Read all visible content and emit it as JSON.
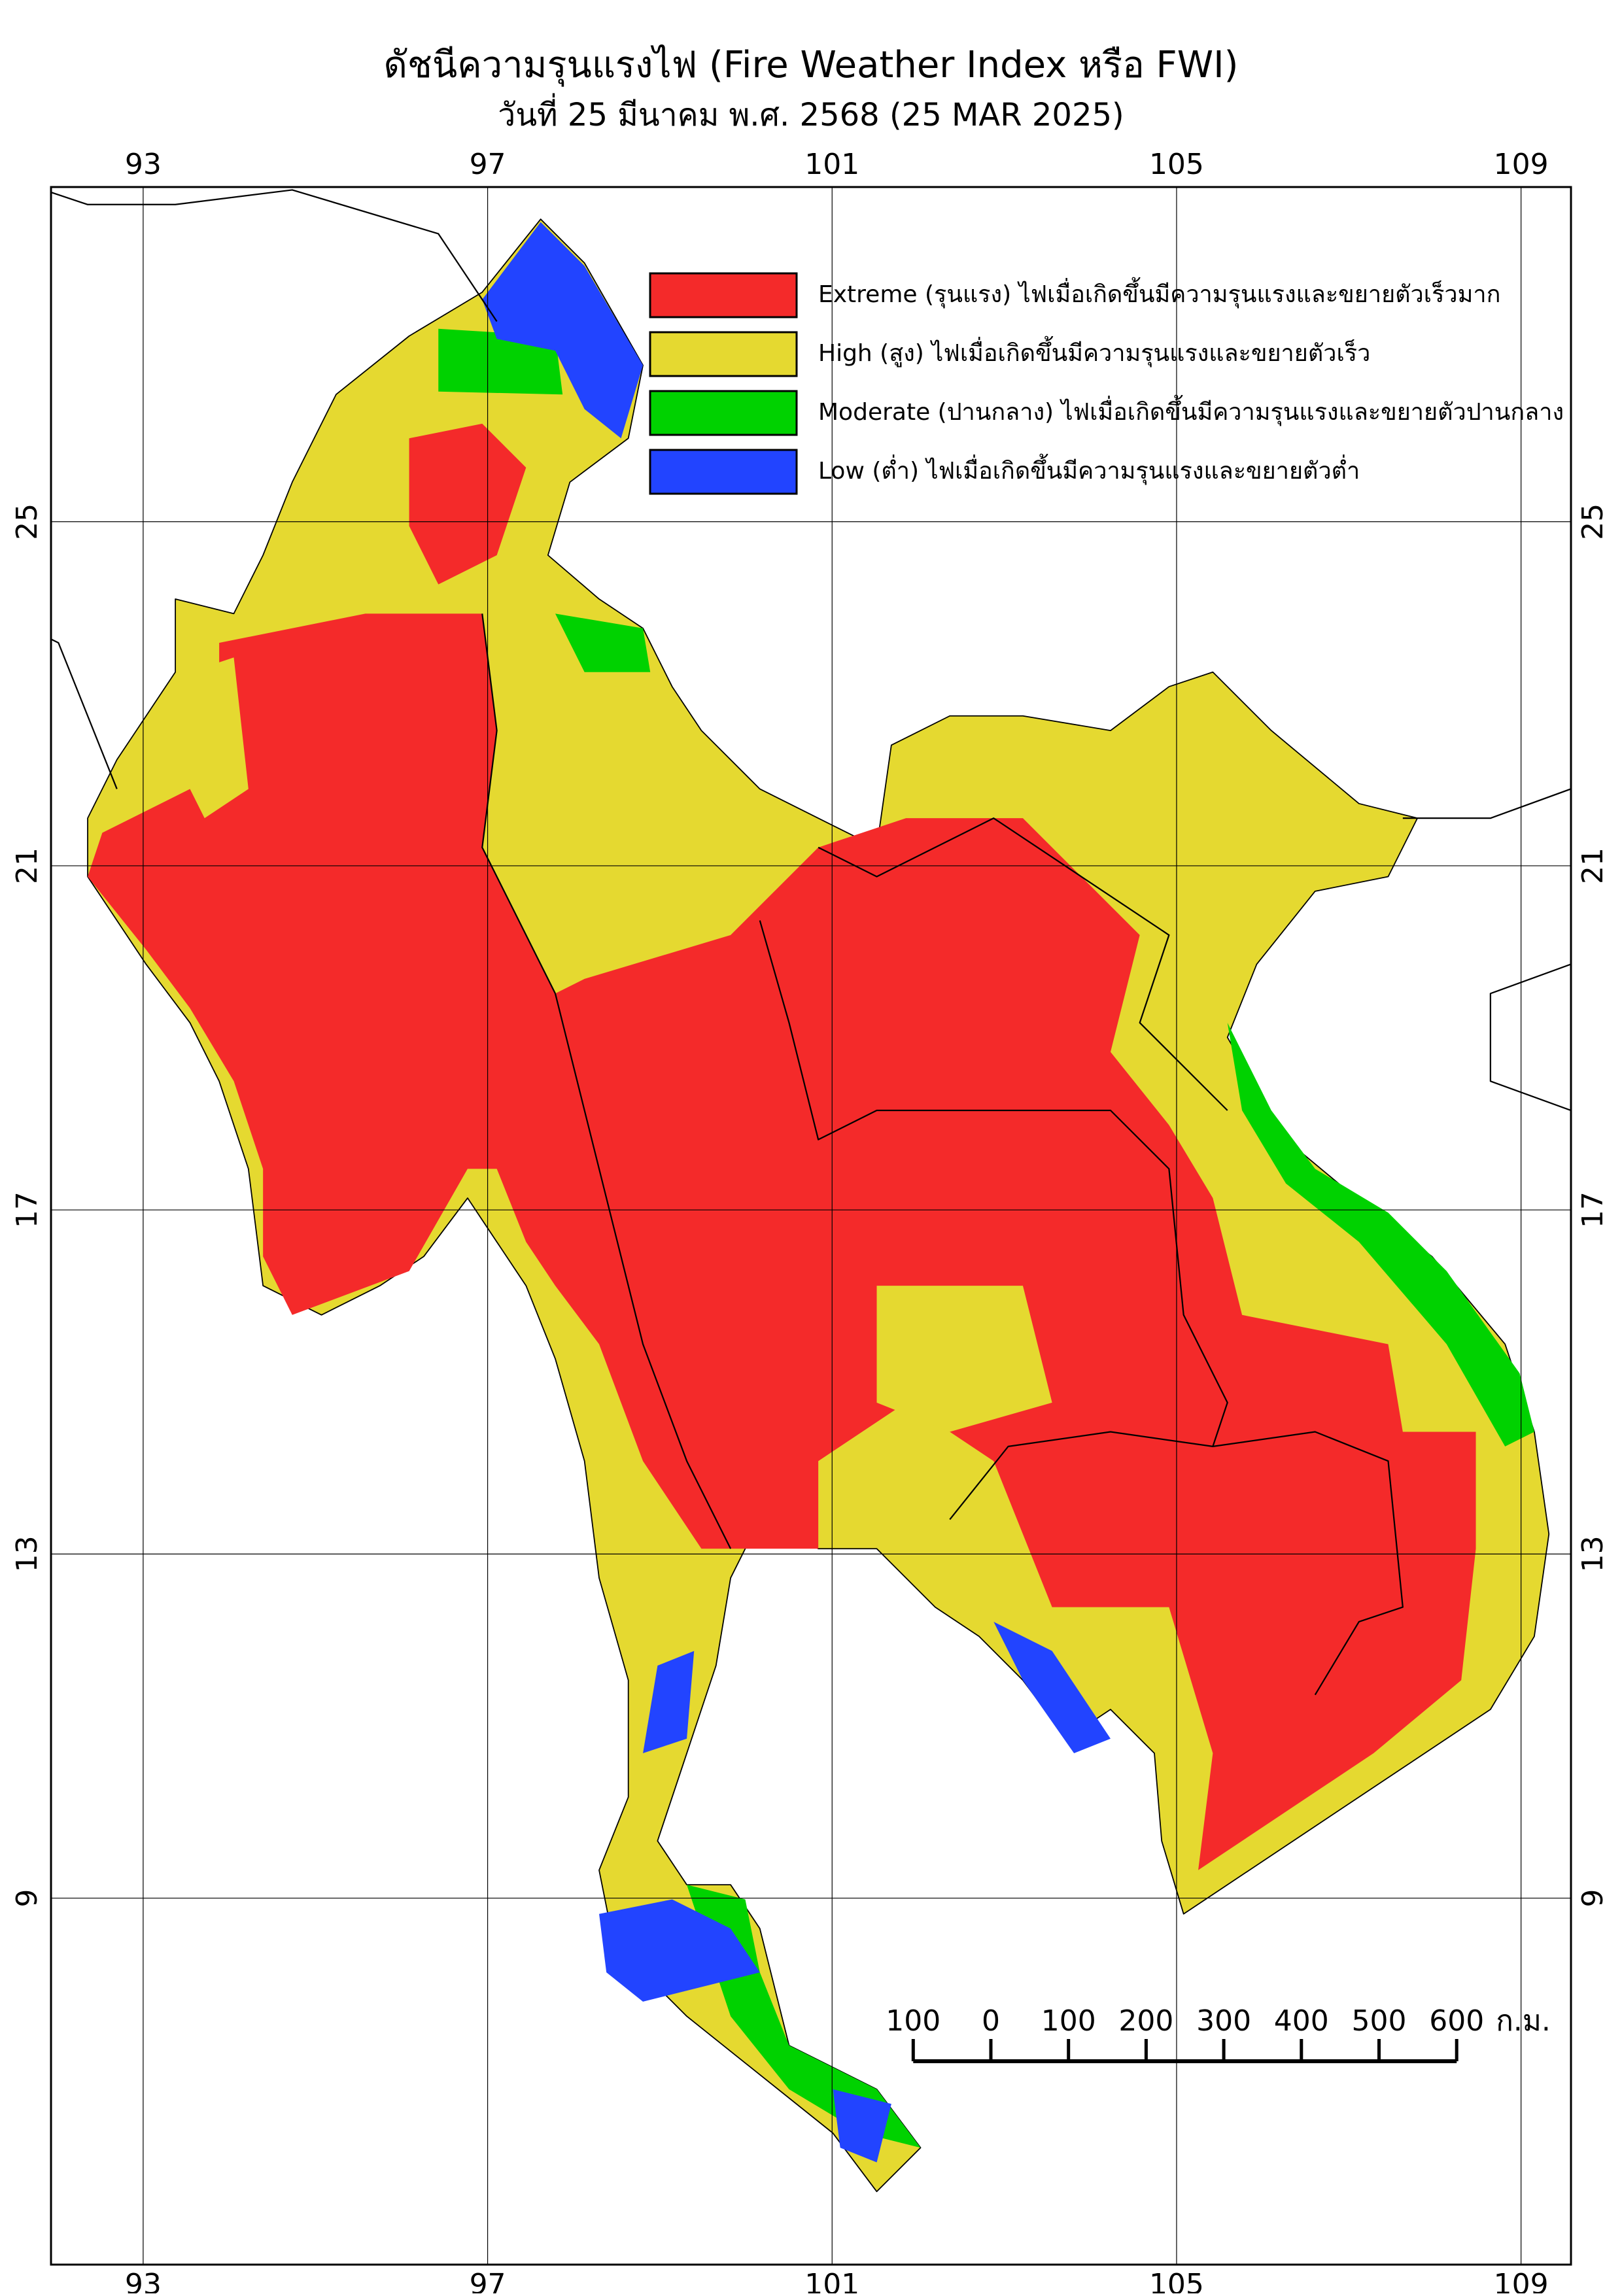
{
  "map": {
    "title": "ดัชนีความรุนแรงไฟ (Fire Weather Index หรือ FWI)",
    "subtitle": "วันที่ 25 มีนาคม พ.ศ. 2568 (25 MAR 2025)",
    "xlim": [
      91.93,
      109.58
    ],
    "ylim": [
      4.74,
      28.89
    ],
    "xticks": [
      93,
      97,
      101,
      105,
      109
    ],
    "yticks": [
      25,
      21,
      17,
      13,
      9
    ],
    "grid": true,
    "legend": [
      {
        "label": "Extreme (รุนแรง) ไฟเมื่อเกิดขึ้นมีความรุนแรงและขยายตัวเร็วมาก",
        "color": "#f42a2a"
      },
      {
        "label": "High (สูง) ไฟเมื่อเกิดขึ้นมีความรุนแรงและขยายตัวเร็ว",
        "color": "#e5d930"
      },
      {
        "label": "Moderate (ปานกลาง) ไฟเมื่อเกิดขึ้นมีความรุนแรงและขยายตัวปานกลาง",
        "color": "#00d200"
      },
      {
        "label": "Low (ต่ำ) ไฟเมื่อเกิดขึ้นมีความรุนแรงและขยายตัวต่ำ",
        "color": "#2244ff"
      }
    ],
    "scale_bar": {
      "ticks": [
        {
          "value": -100,
          "label": "100"
        },
        0,
        100,
        200,
        300,
        400,
        500,
        600
      ],
      "unit": "ก.ม."
    }
  }
}
